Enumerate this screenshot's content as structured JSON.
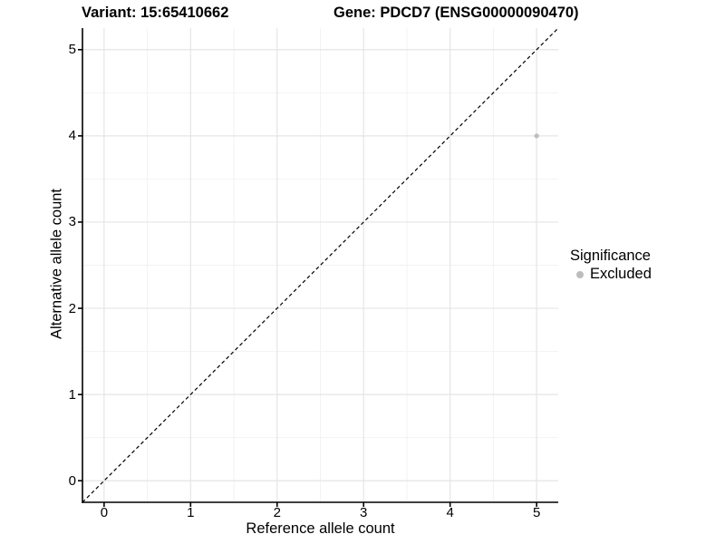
{
  "titles": {
    "left": "Variant: 15:65410662",
    "right": "Gene: PDCD7 (ENSG00000090470)"
  },
  "axes": {
    "x": {
      "label": "Reference allele count",
      "tick_labels": [
        "0",
        "1",
        "2",
        "3",
        "4",
        "5"
      ],
      "tick_values": [
        0,
        1,
        2,
        3,
        4,
        5
      ]
    },
    "y": {
      "label": "Alternative allele count",
      "tick_labels": [
        "0",
        "1",
        "2",
        "3",
        "4",
        "5"
      ],
      "tick_values": [
        0,
        1,
        2,
        3,
        4,
        5
      ]
    }
  },
  "legend": {
    "title": "Significance",
    "items": [
      {
        "label": "Excluded",
        "color": "#bdbdbd"
      }
    ]
  },
  "chart_data": {
    "type": "scatter",
    "title": "Variant: 15:65410662 / Gene: PDCD7 (ENSG00000090470)",
    "xlabel": "Reference allele count",
    "ylabel": "Alternative allele count",
    "xlim": [
      -0.25,
      5.25
    ],
    "ylim": [
      -0.25,
      5.25
    ],
    "x_ticks": [
      0,
      1,
      2,
      3,
      4,
      5
    ],
    "y_ticks": [
      0,
      1,
      2,
      3,
      4,
      5
    ],
    "grid": "major+minor",
    "legend_position": "right",
    "series": [
      {
        "name": "Excluded",
        "color": "#bdbdbd",
        "points": [
          {
            "x": 5,
            "y": 4
          }
        ]
      }
    ],
    "reference_line": {
      "type": "identity",
      "slope": 1,
      "intercept": 0,
      "style": "dashed",
      "color": "#000000"
    }
  },
  "colors": {
    "background": "#ffffff",
    "grid_major": "#e5e5e5",
    "grid_minor": "#f2f2f2",
    "axis_line": "#000000",
    "point": "#bdbdbd",
    "text": "#000000"
  }
}
